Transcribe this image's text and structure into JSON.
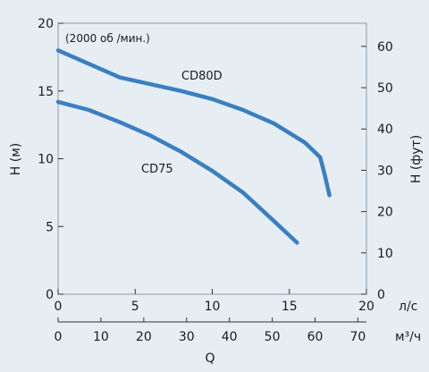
{
  "chart_data": {
    "type": "line",
    "annotation": "(2000 об /мин.)",
    "left_axis": {
      "label": "H (м)",
      "ylim": [
        0,
        20
      ],
      "ticks": [
        0,
        5,
        10,
        15,
        20
      ]
    },
    "right_axis": {
      "label": "H (фут)",
      "ylim_ft": [
        0,
        65.6
      ],
      "ticks": [
        0,
        10,
        20,
        30,
        40,
        50,
        60
      ]
    },
    "bottom_axis_1": {
      "unit": "л/с",
      "xlim": [
        0,
        20
      ],
      "ticks": [
        0,
        5,
        10,
        15,
        20
      ]
    },
    "bottom_axis_2": {
      "unit": "м³/ч",
      "xlim": [
        0,
        72
      ],
      "ticks": [
        0,
        10,
        20,
        30,
        40,
        50,
        60,
        70
      ]
    },
    "xlabel": "Q",
    "series": [
      {
        "name": "CD80D",
        "color": "#3a7fc1",
        "x": [
          0,
          2,
          4,
          6,
          8,
          10,
          12,
          14,
          16,
          17,
          17.3,
          17.6
        ],
        "y": [
          18.0,
          17.0,
          16.0,
          15.5,
          15.0,
          14.4,
          13.6,
          12.6,
          11.2,
          10.1,
          8.8,
          7.3
        ]
      },
      {
        "name": "CD75",
        "color": "#3a7fc1",
        "x": [
          0,
          2,
          4,
          6,
          8,
          10,
          12,
          14,
          15.5
        ],
        "y": [
          14.2,
          13.6,
          12.7,
          11.7,
          10.5,
          9.1,
          7.5,
          5.4,
          3.8
        ]
      }
    ]
  }
}
